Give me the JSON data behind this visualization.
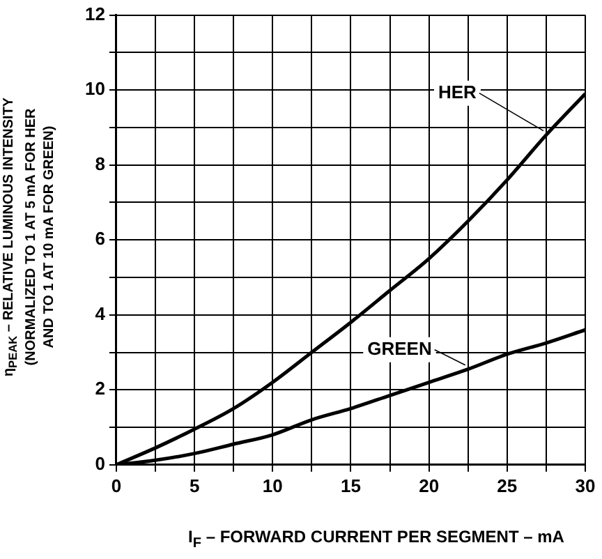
{
  "chart_data": {
    "type": "line",
    "xlabel": "I$_{F}$ – FORWARD CURRENT PER SEGMENT – mA",
    "ylabel": "η$_{PEAK}$ – RELATIVE LUMINOUS INTENSITY (NORMALIZED TO 1 AT 5 mA FOR HER AND TO 1 AT 10 mA FOR GREEN)",
    "x": [
      0,
      2.5,
      5,
      7.5,
      10,
      12.5,
      15,
      17.5,
      20,
      22.5,
      25,
      27.5,
      30
    ],
    "series": [
      {
        "name": "HER",
        "color": "#000000",
        "values": [
          0,
          0.45,
          0.95,
          1.5,
          2.2,
          3.0,
          3.8,
          4.65,
          5.5,
          6.5,
          7.6,
          8.8,
          9.9
        ]
      },
      {
        "name": "GREEN",
        "color": "#000000",
        "values": [
          0,
          0.12,
          0.3,
          0.55,
          0.8,
          1.2,
          1.5,
          1.85,
          2.2,
          2.55,
          2.95,
          3.25,
          3.6
        ]
      }
    ],
    "xlim": [
      0,
      30
    ],
    "xticks": [
      0,
      {
        "value": 2.5,
        "label": null
      },
      5,
      {
        "value": 7.5,
        "label": null
      },
      10,
      {
        "value": 12.5,
        "label": null
      },
      15,
      {
        "value": 17.5,
        "label": null
      },
      20,
      {
        "value": 22.5,
        "label": null
      },
      25,
      {
        "value": 27.5,
        "label": null
      },
      30
    ],
    "ylim": [
      0,
      12
    ],
    "yticks": [
      0,
      {
        "value": 1,
        "label": null
      },
      2,
      {
        "value": 3,
        "label": null
      },
      4,
      {
        "value": 5,
        "label": null
      },
      6,
      {
        "value": 7,
        "label": null
      },
      8,
      {
        "value": 9,
        "label": null
      },
      10,
      {
        "value": 11,
        "label": null
      },
      12
    ],
    "grid": true,
    "marker": "none",
    "line_style": "solid"
  }
}
